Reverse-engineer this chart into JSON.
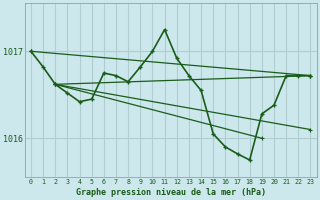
{
  "title": "Graphe pression niveau de la mer (hPa)",
  "background_color": "#cce8ec",
  "grid_color": "#b0cdd0",
  "line_color": "#1a5c1a",
  "xlim": [
    -0.5,
    23.5
  ],
  "ylim": [
    1015.55,
    1017.55
  ],
  "yticks": [
    1016.0,
    1017.0
  ],
  "xticks": [
    0,
    1,
    2,
    3,
    4,
    5,
    6,
    7,
    8,
    9,
    10,
    11,
    12,
    13,
    14,
    15,
    16,
    17,
    18,
    19,
    20,
    21,
    22,
    23
  ],
  "main_line": {
    "x": [
      0,
      1,
      2,
      3,
      4,
      5,
      6,
      7,
      8,
      9,
      10,
      11,
      12,
      13,
      14,
      15,
      16,
      17,
      18,
      19,
      20,
      21,
      22,
      23
    ],
    "y": [
      1017.0,
      1016.82,
      1016.62,
      1016.52,
      1016.42,
      1016.45,
      1016.75,
      1016.72,
      1016.65,
      1016.82,
      1017.0,
      1017.25,
      1016.92,
      1016.72,
      1016.55,
      1016.05,
      1015.9,
      1015.82,
      1015.75,
      1016.28,
      1016.38,
      1016.72,
      1016.72,
      1016.72
    ]
  },
  "trend_lines": [
    {
      "x": [
        0,
        23
      ],
      "y": [
        1017.0,
        1016.72
      ]
    },
    {
      "x": [
        2,
        23
      ],
      "y": [
        1016.62,
        1016.72
      ]
    },
    {
      "x": [
        2,
        23
      ],
      "y": [
        1016.62,
        1016.1
      ]
    },
    {
      "x": [
        2,
        19
      ],
      "y": [
        1016.62,
        1016.0
      ]
    }
  ]
}
